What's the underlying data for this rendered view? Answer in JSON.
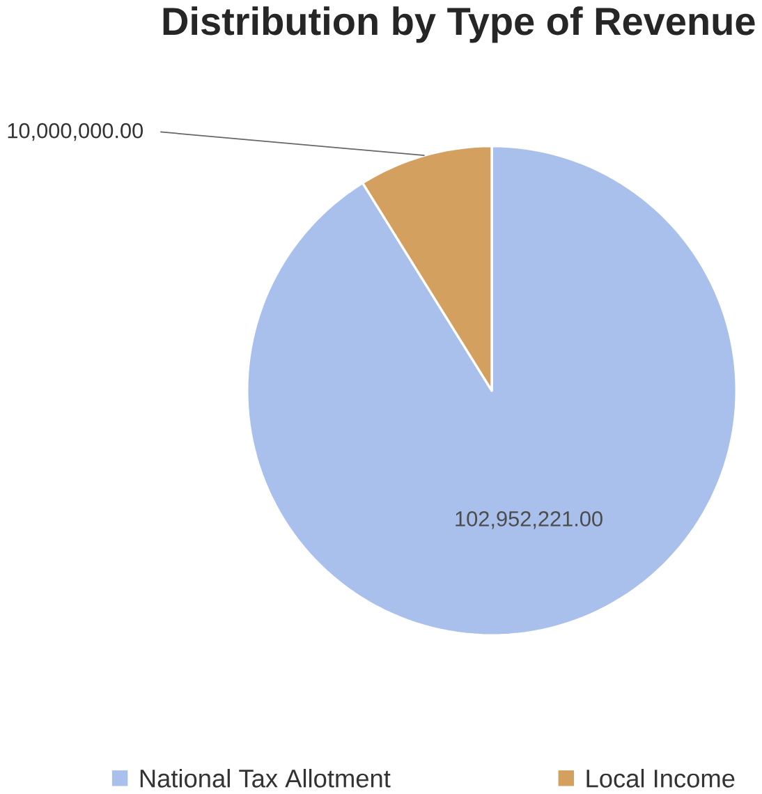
{
  "chart_data": {
    "type": "pie",
    "title": "Distribution by Type of Revenue",
    "categories": [
      "National Tax Allotment",
      "Local Income"
    ],
    "values": [
      102952221.0,
      10000000.0
    ],
    "value_labels": [
      "102,952,221.00",
      "10,000,000.00"
    ],
    "colors": [
      "#a9c0ec",
      "#d4a060"
    ],
    "legend": "bottom"
  }
}
